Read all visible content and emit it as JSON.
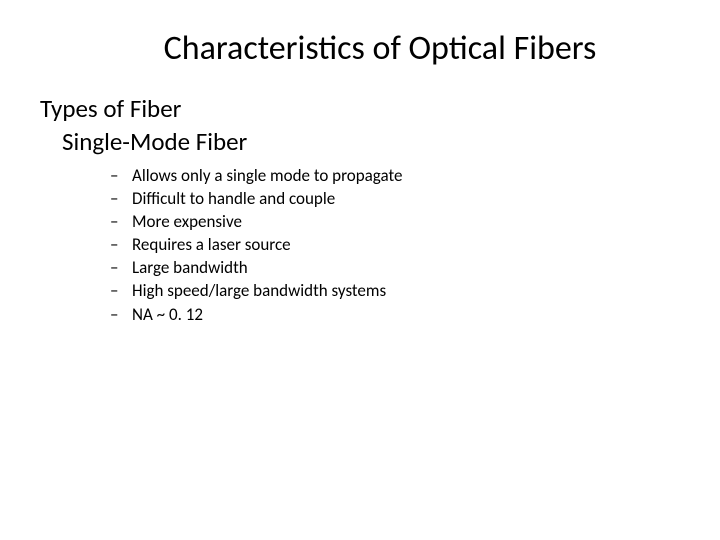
{
  "slide": {
    "title": "Characteristics of Optical Fibers",
    "heading1": "Types of Fiber",
    "heading2": "Single-Mode Fiber",
    "bullets": [
      "Allows only a single mode to propagate",
      "Difficult to handle and couple",
      "More expensive",
      "Requires a laser source",
      "Large bandwidth",
      "High speed/large bandwidth systems",
      "NA ~ 0. 12"
    ],
    "bullet_marker": "–"
  },
  "style": {
    "background_color": "#ffffff",
    "text_color": "#000000",
    "title_fontsize": 34,
    "heading_fontsize": 25,
    "bullet_fontsize": 17,
    "font_family": "Calibri"
  }
}
